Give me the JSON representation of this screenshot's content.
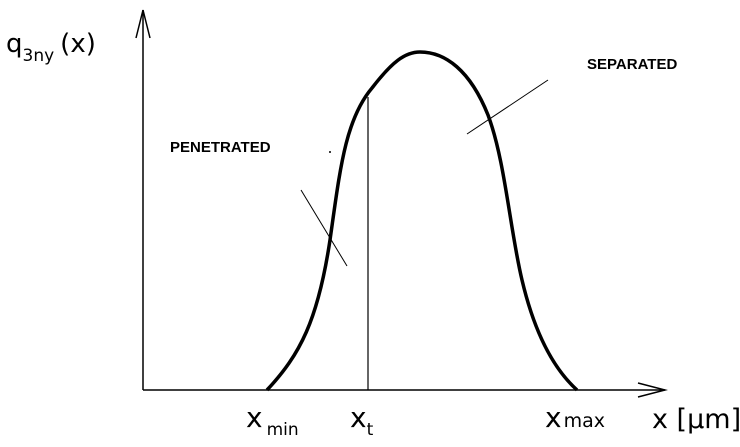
{
  "y_axis_label": {
    "symbol": "q",
    "subscript": "3ny",
    "argument": "(x)"
  },
  "x_axis_label": "x [µm]",
  "region_labels": {
    "right": "SEPARATED",
    "left": "PENETRATED"
  },
  "x_markers": [
    {
      "symbol": "x",
      "subscript": "min"
    },
    {
      "symbol": "x",
      "subscript": "t"
    },
    {
      "symbol": "x",
      "subscript": "max"
    }
  ]
}
